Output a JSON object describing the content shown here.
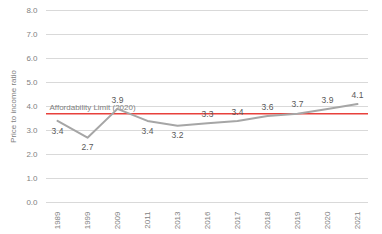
{
  "chart_data": {
    "type": "line",
    "y_label": "Price to income ratio",
    "categories": [
      "1989",
      "1999",
      "2009",
      "2011",
      "2013",
      "2016",
      "2017",
      "2018",
      "2019",
      "2020",
      "2021"
    ],
    "values": [
      3.4,
      2.7,
      3.9,
      3.4,
      3.2,
      3.3,
      3.4,
      3.6,
      3.7,
      3.9,
      4.1
    ],
    "color": "#a6a6a6",
    "marker": "none",
    "data_labels": true,
    "ylim": [
      0,
      8
    ],
    "yticks": [
      {
        "value": 0,
        "label": "0.0"
      },
      {
        "value": 1,
        "label": "1.0"
      },
      {
        "value": 2,
        "label": "2.0"
      },
      {
        "value": 3,
        "label": "3.0"
      },
      {
        "value": 4,
        "label": "4.0"
      },
      {
        "value": 5,
        "label": "5.0"
      },
      {
        "value": 6,
        "label": "6.0"
      },
      {
        "value": 7,
        "label": "7.0"
      },
      {
        "value": 8,
        "label": "8.0"
      }
    ],
    "grid": true,
    "annotations": [
      {
        "text": "Affordability Limit (2020)",
        "y": 3.7,
        "color": "#e8413c"
      }
    ]
  }
}
